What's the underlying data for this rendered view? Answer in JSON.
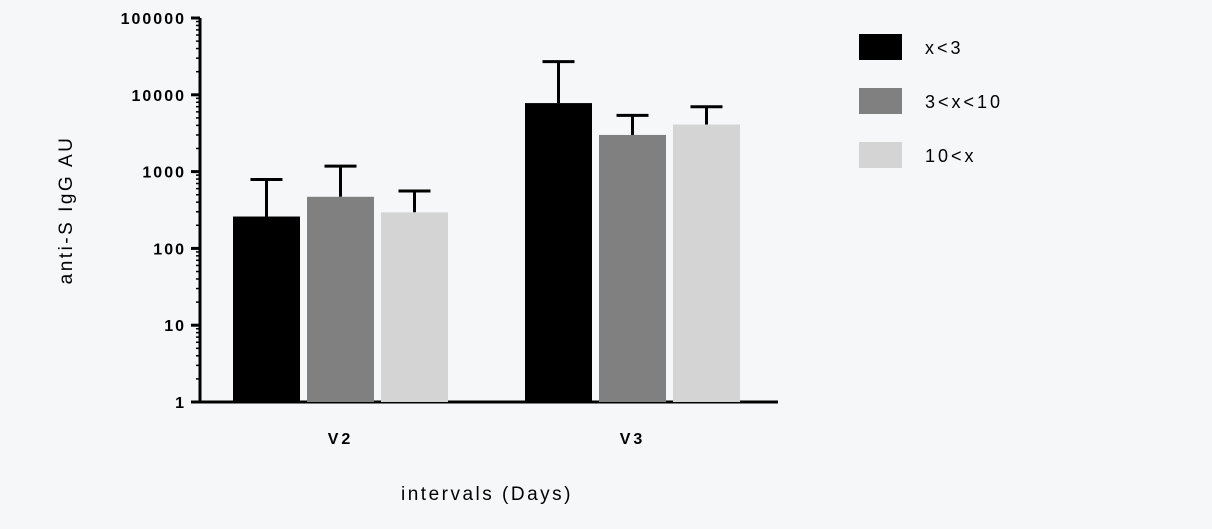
{
  "chart_data": {
    "type": "bar",
    "categories": [
      "V2",
      "V3"
    ],
    "series": [
      {
        "name": "x<3",
        "color": "#000000",
        "values": [
          260,
          7800
        ],
        "error_upper": [
          790,
          27000
        ]
      },
      {
        "name": "3<x<10",
        "color": "#808080",
        "values": [
          470,
          3000
        ],
        "error_upper": [
          1180,
          5400
        ]
      },
      {
        "name": "10<x",
        "color": "#d4d4d4",
        "values": [
          295,
          4100
        ],
        "error_upper": [
          560,
          7000
        ]
      }
    ],
    "xlabel": "intervals (Days)",
    "ylabel": "anti-S IgG AU",
    "yscale": "log",
    "ylim": [
      1,
      100000
    ],
    "yticks": [
      1,
      10,
      100,
      1000,
      10000,
      100000
    ],
    "ytick_labels": [
      "1",
      "10",
      "100",
      "1000",
      "10000",
      "100000"
    ],
    "legend_position": "top-right",
    "grid": false
  }
}
